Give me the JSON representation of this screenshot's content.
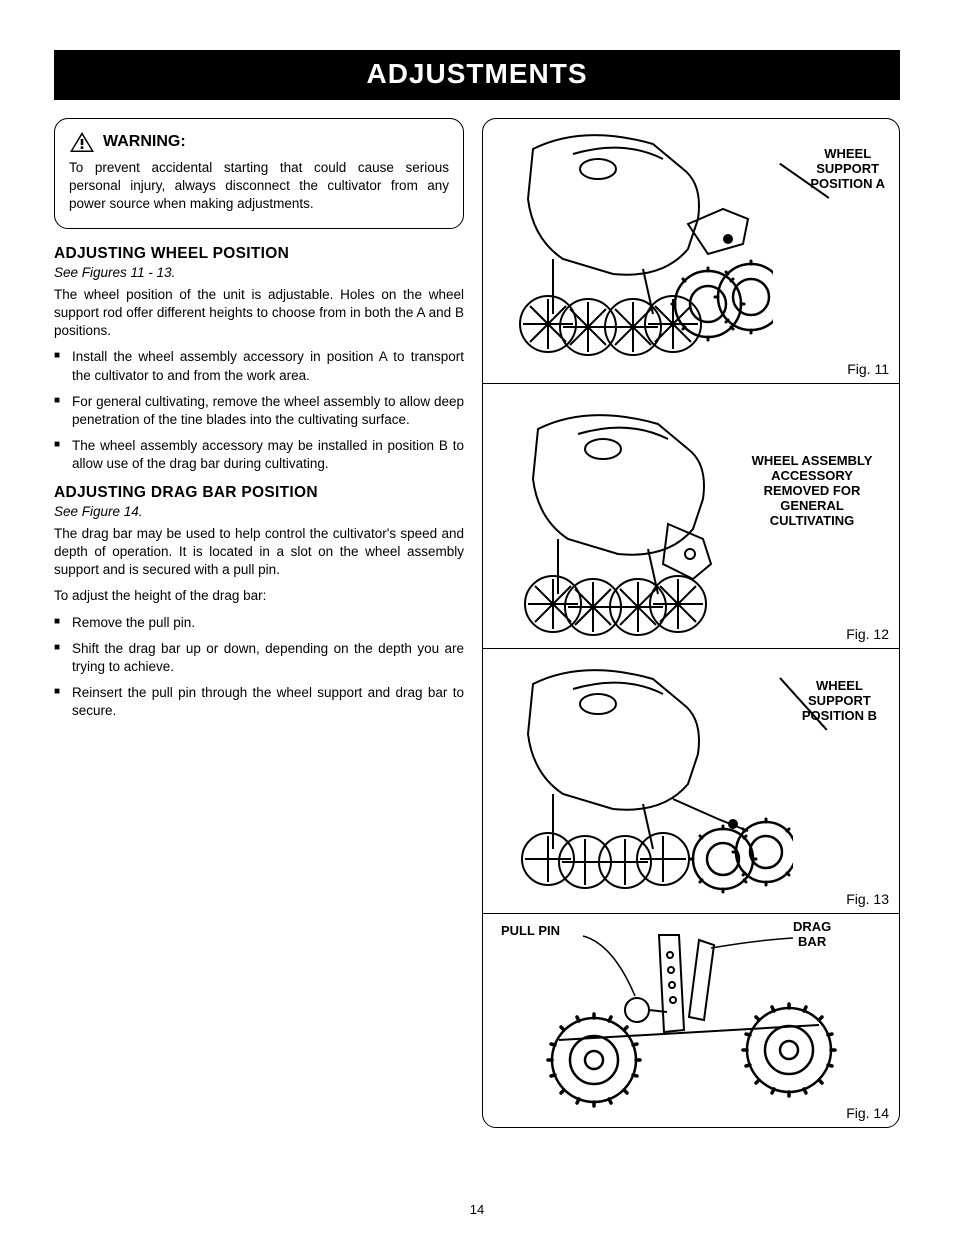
{
  "page": {
    "title_bar": "ADJUSTMENTS",
    "page_number": "14"
  },
  "warning": {
    "heading": "WARNING:",
    "body": "To prevent accidental starting that could cause serious personal injury, always disconnect the cultivator from any power source when making adjustments."
  },
  "section1": {
    "heading": "ADJUSTING WHEEL POSITION",
    "see": "See Figures 11 - 13.",
    "para": "The wheel position of the unit is adjustable. Holes on the wheel support rod offer different heights to choose from in both the A and B positions.",
    "bullets": [
      "Install the wheel assembly accessory in position A to transport the cultivator to and from the work area.",
      "For general cultivating, remove the wheel assembly to allow deep penetration of the tine blades into the cultivating surface.",
      "The wheel assembly accessory may be installed in position B to allow use of the drag bar during cultivating."
    ]
  },
  "section2": {
    "heading": "ADJUSTING DRAG BAR POSITION",
    "see": "See Figure 14.",
    "para1": "The drag bar may be used to help control the cultivator's speed and depth of operation. It is located in a slot on the wheel assembly support and is secured with a pull pin.",
    "para2": "To adjust the height of the drag bar:",
    "bullets": [
      "Remove the pull pin.",
      "Shift the drag bar up or down, depending on the depth you are trying to achieve.",
      "Reinsert the pull pin through the wheel support and drag bar to secure."
    ]
  },
  "figures": {
    "f11": {
      "caption": "Fig. 11",
      "callout": "WHEEL\nSUPPORT\nPOSITION A"
    },
    "f12": {
      "caption": "Fig. 12",
      "callout": "WHEEL ASSEMBLY\nACCESSORY\nREMOVED FOR\nGENERAL CULTIVATING"
    },
    "f13": {
      "caption": "Fig. 13",
      "callout": "WHEEL\nSUPPORT\nPOSITION B"
    },
    "f14": {
      "caption": "Fig. 14",
      "callout_left": "PULL PIN",
      "callout_right": "DRAG\nBAR"
    }
  },
  "colors": {
    "black": "#000000",
    "white": "#ffffff"
  }
}
